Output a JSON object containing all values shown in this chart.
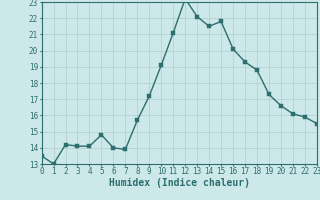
{
  "x": [
    0,
    1,
    2,
    3,
    4,
    5,
    6,
    7,
    8,
    9,
    10,
    11,
    12,
    13,
    14,
    15,
    16,
    17,
    18,
    19,
    20,
    21,
    22,
    23
  ],
  "y": [
    13.5,
    13.0,
    14.2,
    14.1,
    14.1,
    14.8,
    14.0,
    13.9,
    15.7,
    17.2,
    19.1,
    21.1,
    23.2,
    22.1,
    21.5,
    21.8,
    20.1,
    19.3,
    18.8,
    17.3,
    16.6,
    16.1,
    15.9,
    15.5
  ],
  "xlabel": "Humidex (Indice chaleur)",
  "ylim": [
    13,
    23
  ],
  "xlim": [
    0,
    23
  ],
  "yticks": [
    13,
    14,
    15,
    16,
    17,
    18,
    19,
    20,
    21,
    22,
    23
  ],
  "xticks": [
    0,
    1,
    2,
    3,
    4,
    5,
    6,
    7,
    8,
    9,
    10,
    11,
    12,
    13,
    14,
    15,
    16,
    17,
    18,
    19,
    20,
    21,
    22,
    23
  ],
  "line_color": "#2d6e6e",
  "marker_color": "#2d6e6e",
  "bg_color": "#cce8e8",
  "grid_color": "#b0cccc",
  "border_color": "#2d6e6e",
  "xlabel_fontsize": 7,
  "tick_fontsize": 5.5,
  "marker_size": 2.2,
  "linewidth": 1.0
}
